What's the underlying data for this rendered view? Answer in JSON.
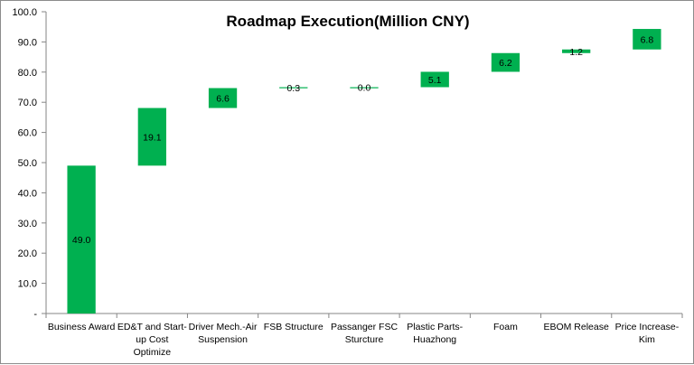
{
  "chart_data": {
    "type": "bar",
    "subtype": "waterfall",
    "title": "Roadmap Execution(Million CNY)",
    "xlabel": "",
    "ylabel": "",
    "ylim": [
      0,
      100
    ],
    "ytick_values": [
      0,
      10,
      20,
      30,
      40,
      50,
      60,
      70,
      80,
      90,
      100
    ],
    "yticks": [
      "-",
      "10.0",
      "20.0",
      "30.0",
      "40.0",
      "50.0",
      "60.0",
      "70.0",
      "80.0",
      "90.0",
      "100.0"
    ],
    "grid": false,
    "legend": "none",
    "bar_color": "#00b050",
    "categories": [
      [
        "Business Award"
      ],
      [
        "ED&T and Start-",
        "up Cost",
        "Optimize"
      ],
      [
        "Driver Mech.-Air",
        "Suspension"
      ],
      [
        "FSB Structure"
      ],
      [
        "Passanger FSC",
        "Sturcture"
      ],
      [
        "Plastic Parts-",
        "Huazhong"
      ],
      [
        "Foam"
      ],
      [
        "EBOM Release"
      ],
      [
        "Price Increase-",
        "Kim"
      ]
    ],
    "values": [
      49.0,
      19.1,
      6.6,
      0.3,
      0.0,
      5.1,
      6.2,
      1.2,
      6.8
    ],
    "data_labels": [
      "49.0",
      "19.1",
      "6.6",
      "0.3",
      "0.0",
      "5.1",
      "6.2",
      "1.2",
      "6.8"
    ],
    "bases": [
      0,
      49.0,
      68.1,
      74.7,
      75.0,
      75.0,
      80.1,
      86.3,
      87.5
    ]
  }
}
